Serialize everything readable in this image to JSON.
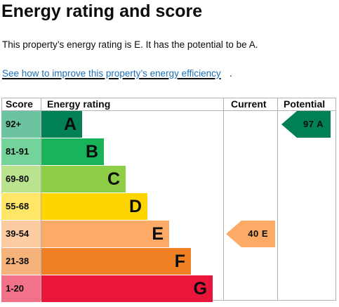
{
  "heading": "Energy rating and score",
  "summary": "This property’s energy rating is E. It has the potential to be A.",
  "link": {
    "text": "See how to improve this property’s energy efficiency",
    "suffix": "."
  },
  "table": {
    "headers": {
      "score": "Score",
      "rating": "Energy rating",
      "current": "Current",
      "potential": "Potential"
    }
  },
  "chart_data": {
    "type": "bar",
    "categories": [
      "A",
      "B",
      "C",
      "D",
      "E",
      "F",
      "G"
    ],
    "score_ranges": [
      "92+",
      "81-91",
      "69-80",
      "55-68",
      "39-54",
      "21-38",
      "1-20"
    ],
    "colors": [
      "#008054",
      "#19b459",
      "#8dce46",
      "#ffd500",
      "#fcaa65",
      "#ef8023",
      "#e9153b"
    ],
    "score_colors": [
      "#6cc39f",
      "#74d39b",
      "#bae390",
      "#ffe666",
      "#fdcca3",
      "#f5b37b",
      "#f27389"
    ],
    "current": {
      "score": 40,
      "band": "E",
      "label": "40 E"
    },
    "potential": {
      "score": 97,
      "band": "A",
      "label": "97 A"
    }
  }
}
